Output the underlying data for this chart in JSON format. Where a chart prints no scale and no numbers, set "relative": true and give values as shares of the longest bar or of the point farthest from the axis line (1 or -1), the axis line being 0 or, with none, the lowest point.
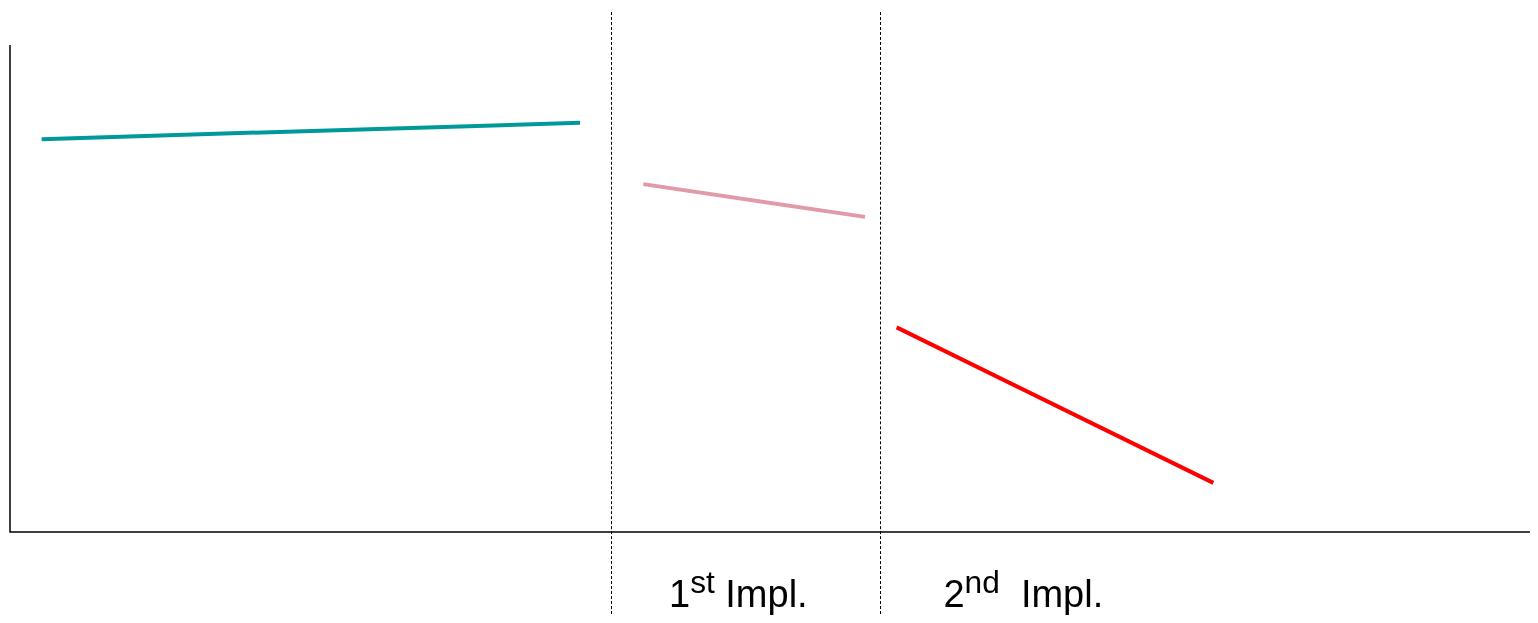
{
  "chart_data": {
    "type": "line",
    "relative": true,
    "tick_labels": "x",
    "marker": "none",
    "categories": [
      null,
      null,
      null,
      null,
      null,
      null,
      null,
      null,
      null,
      null,
      null,
      null,
      null,
      null,
      null,
      null,
      null,
      null,
      null,
      null,
      null,
      null,
      null,
      "1$^{st}$ Impl.",
      null,
      null,
      null,
      null,
      null,
      null,
      null,
      null,
      "2$^{nd}$  Impl.",
      null,
      null,
      null,
      null,
      null,
      null,
      null,
      null,
      null,
      null,
      null,
      null,
      null,
      null,
      null,
      null
    ],
    "series": [
      {
        "color": "#009999",
        "values": [
          null,
          0.96,
          null,
          null,
          null,
          null,
          null,
          null,
          null,
          null,
          null,
          null,
          null,
          null,
          null,
          null,
          null,
          null,
          1,
          null,
          null,
          null,
          null,
          null,
          null,
          null,
          null,
          null,
          null,
          null,
          null,
          null,
          null,
          null,
          null,
          null,
          null,
          null,
          null,
          null,
          null,
          null,
          null,
          null,
          null,
          null,
          null,
          null,
          null
        ]
      },
      {
        "color": "#e09aa8",
        "values": [
          null,
          null,
          null,
          null,
          null,
          null,
          null,
          null,
          null,
          null,
          null,
          null,
          null,
          null,
          null,
          null,
          null,
          null,
          null,
          null,
          0.85,
          null,
          null,
          null,
          null,
          null,
          null,
          0.77,
          null,
          null,
          null,
          null,
          null,
          null,
          null,
          null,
          null,
          null,
          null,
          null,
          null,
          null,
          null,
          null,
          null,
          null,
          null,
          null,
          null
        ]
      },
      {
        "color": "#ff0000",
        "values": [
          null,
          null,
          null,
          null,
          null,
          null,
          null,
          null,
          null,
          null,
          null,
          null,
          null,
          null,
          null,
          null,
          null,
          null,
          null,
          null,
          null,
          null,
          null,
          null,
          null,
          null,
          null,
          null,
          0.5,
          null,
          null,
          null,
          null,
          null,
          null,
          null,
          null,
          null,
          0.12,
          null,
          null,
          null,
          null,
          null,
          null,
          null,
          null,
          null,
          null
        ]
      }
    ]
  }
}
